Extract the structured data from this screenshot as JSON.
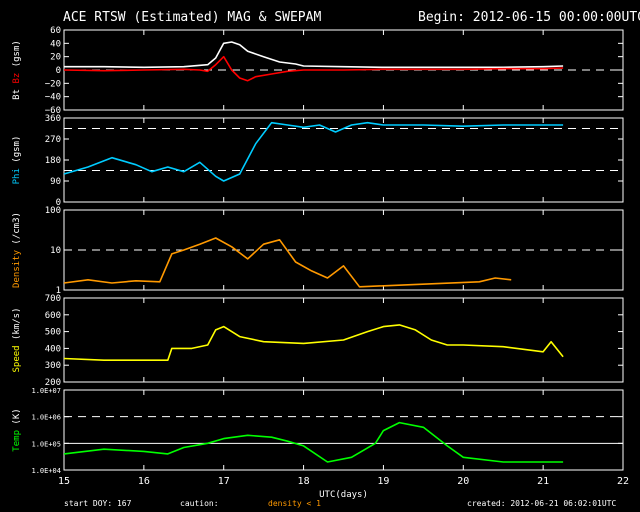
{
  "header": {
    "title": "ACE RTSW (Estimated) MAG & SWEPAM",
    "begin": "Begin: 2012-06-15 00:00:00UTC"
  },
  "footer": {
    "start_doy": "start DOY: 167",
    "caution": "caution:",
    "density_note": "density < 1",
    "created": "created: 2012-06-21 06:02:01UTC"
  },
  "colors": {
    "background": "#000000",
    "frame": "#ffffff",
    "bt": "#ffffff",
    "bz": "#ff0000",
    "phi": "#00ccff",
    "density": "#ff9900",
    "speed": "#ffff00",
    "temp": "#00ff00",
    "caution": "#ff9900"
  },
  "chart_data": {
    "type": "line",
    "x_axis": {
      "label": "UTC(days)",
      "range": [
        15,
        22
      ],
      "ticks": [
        "15",
        "16",
        "17",
        "18",
        "19",
        "20",
        "21",
        "22"
      ]
    },
    "panels": [
      {
        "id": "mag",
        "ylabel_parts": [
          {
            "text": "Bt",
            "color": "#ffffff"
          },
          {
            "text": "Bz",
            "color": "#ff0000"
          },
          {
            "text": "(gsm)",
            "color": "#ffffff"
          }
        ],
        "scale": "linear",
        "ylim": [
          -60,
          60
        ],
        "tick_labels": [
          "60",
          "40",
          "20",
          "0",
          "−20",
          "−40",
          "−60"
        ],
        "tick_values": [
          60,
          40,
          20,
          0,
          -20,
          -40,
          -60
        ],
        "dashed_refs": [
          0
        ],
        "series": [
          {
            "name": "Bt",
            "color": "#ffffff",
            "x": [
              15.0,
              15.5,
              16.0,
              16.5,
              16.8,
              16.9,
              17.0,
              17.1,
              17.2,
              17.3,
              17.5,
              17.7,
              17.9,
              18.0,
              18.5,
              19.0,
              19.5,
              20.0,
              20.5,
              21.0,
              21.25
            ],
            "y": [
              5,
              5,
              4,
              5,
              8,
              18,
              40,
              42,
              38,
              28,
              20,
              12,
              9,
              6,
              5,
              4,
              4,
              4,
              4,
              5,
              6
            ]
          },
          {
            "name": "Bz",
            "color": "#ff0000",
            "x": [
              15.0,
              15.5,
              16.0,
              16.5,
              16.7,
              16.8,
              16.9,
              17.0,
              17.1,
              17.2,
              17.3,
              17.4,
              17.6,
              17.8,
              18.0,
              18.5,
              19.0,
              19.5,
              20.0,
              20.5,
              21.0,
              21.25
            ],
            "y": [
              0,
              -1,
              0,
              1,
              0,
              -2,
              8,
              20,
              0,
              -12,
              -16,
              -10,
              -6,
              -2,
              0,
              0,
              1,
              1,
              1,
              2,
              2,
              3
            ]
          }
        ]
      },
      {
        "id": "phi",
        "ylabel_parts": [
          {
            "text": "Phi",
            "color": "#00ccff"
          },
          {
            "text": "(gsm)",
            "color": "#ffffff"
          }
        ],
        "scale": "linear",
        "ylim": [
          0,
          360
        ],
        "tick_labels": [
          "360",
          "270",
          "180",
          "90",
          "0"
        ],
        "tick_values": [
          360,
          270,
          180,
          90,
          0
        ],
        "dashed_refs": [
          315,
          135
        ],
        "series": [
          {
            "name": "Phi",
            "color": "#00ccff",
            "x": [
              15.0,
              15.3,
              15.6,
              15.9,
              16.1,
              16.3,
              16.5,
              16.7,
              16.9,
              17.0,
              17.2,
              17.4,
              17.6,
              17.8,
              18.0,
              18.2,
              18.4,
              18.6,
              18.8,
              19.0,
              19.5,
              20.0,
              20.5,
              21.0,
              21.25
            ],
            "y": [
              120,
              150,
              190,
              160,
              130,
              150,
              130,
              170,
              110,
              90,
              120,
              250,
              340,
              330,
              320,
              330,
              300,
              330,
              340,
              330,
              330,
              325,
              330,
              330,
              330
            ]
          }
        ]
      },
      {
        "id": "density",
        "ylabel_parts": [
          {
            "text": "Density",
            "color": "#ff9900"
          },
          {
            "text": "(/cm3)",
            "color": "#ffffff"
          }
        ],
        "scale": "log",
        "ylim": [
          1,
          100
        ],
        "tick_labels": [
          "100",
          "10",
          "1"
        ],
        "tick_values": [
          100,
          10,
          1
        ],
        "dashed_refs": [
          10
        ],
        "series": [
          {
            "name": "Density",
            "color": "#ff9900",
            "x": [
              15.0,
              15.3,
              15.6,
              15.9,
              16.2,
              16.35,
              16.5,
              16.7,
              16.9,
              17.1,
              17.3,
              17.5,
              17.7,
              17.9,
              18.1,
              18.3,
              18.5,
              18.7,
              20.2,
              20.4,
              20.6
            ],
            "y": [
              1.5,
              1.8,
              1.5,
              1.7,
              1.6,
              8,
              10,
              14,
              20,
              12,
              6,
              14,
              18,
              5,
              3,
              2,
              4,
              1.2,
              1.6,
              2,
              1.8
            ]
          }
        ]
      },
      {
        "id": "speed",
        "ylabel_parts": [
          {
            "text": "Speed",
            "color": "#ffff00"
          },
          {
            "text": "(km/s)",
            "color": "#ffffff"
          }
        ],
        "scale": "linear",
        "ylim": [
          200,
          700
        ],
        "tick_labels": [
          "700",
          "600",
          "500",
          "400",
          "300",
          "200"
        ],
        "tick_values": [
          700,
          600,
          500,
          400,
          300,
          200
        ],
        "dashed_refs": [],
        "series": [
          {
            "name": "Speed",
            "color": "#ffff00",
            "x": [
              15.0,
              15.5,
              16.0,
              16.3,
              16.35,
              16.6,
              16.8,
              16.9,
              17.0,
              17.2,
              17.5,
              18.0,
              18.5,
              18.8,
              19.0,
              19.2,
              19.4,
              19.6,
              19.8,
              20.0,
              20.5,
              21.0,
              21.1,
              21.25
            ],
            "y": [
              340,
              330,
              330,
              330,
              400,
              400,
              420,
              510,
              530,
              470,
              440,
              430,
              450,
              500,
              530,
              540,
              510,
              450,
              420,
              420,
              410,
              380,
              440,
              350
            ]
          }
        ]
      },
      {
        "id": "temp",
        "ylabel_parts": [
          {
            "text": "Temp",
            "color": "#00ff00"
          },
          {
            "text": "(K)",
            "color": "#ffffff"
          }
        ],
        "scale": "log",
        "ylim": [
          10000,
          10000000
        ],
        "tick_labels": [
          "1.0E+07",
          "1.0E+06",
          "1.0E+05",
          "1.0E+04"
        ],
        "tick_values": [
          10000000,
          1000000,
          100000,
          10000
        ],
        "dashed_refs": [
          1000000
        ],
        "solid_refs": [
          100000
        ],
        "series": [
          {
            "name": "Temp",
            "color": "#00ff00",
            "x": [
              15.0,
              15.5,
              16.0,
              16.3,
              16.5,
              16.8,
              17.0,
              17.3,
              17.6,
              17.8,
              18.0,
              18.3,
              18.6,
              18.9,
              19.0,
              19.2,
              19.5,
              19.8,
              20.0,
              20.5,
              21.0,
              21.25
            ],
            "y": [
              40000,
              60000,
              50000,
              40000,
              70000,
              100000,
              150000,
              200000,
              170000,
              120000,
              80000,
              20000,
              30000,
              100000,
              300000,
              600000,
              400000,
              80000,
              30000,
              20000,
              20000,
              20000
            ]
          }
        ]
      }
    ]
  }
}
